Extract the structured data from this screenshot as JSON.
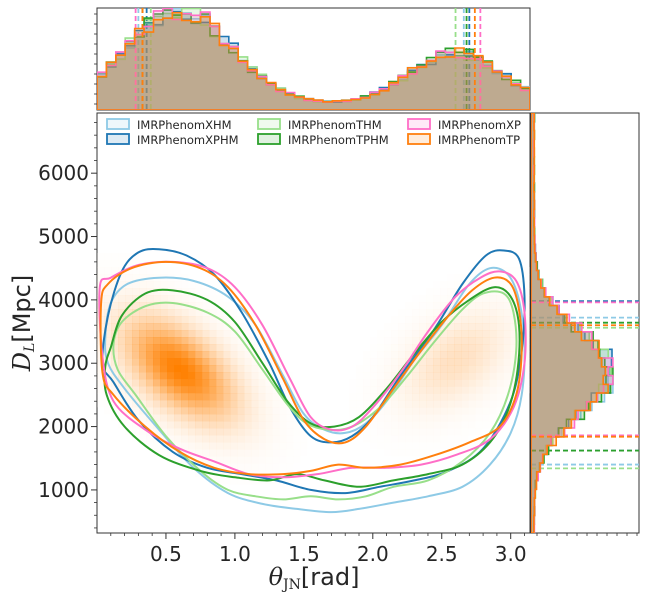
{
  "chart_data": {
    "type": "corner-plot",
    "description_axes": {
      "xlabel_main": "θ",
      "xlabel_sub": "JN",
      "xlabel_unit": "[rad]",
      "ylabel_main": "D",
      "ylabel_sub": "L",
      "ylabel_unit": "[Mpc]"
    },
    "xlim": [
      0.0,
      3.14
    ],
    "ylim": [
      320,
      6950
    ],
    "xticks": [
      0.5,
      1.0,
      1.5,
      2.0,
      2.5,
      3.0
    ],
    "xtick_labels": [
      "0.5",
      "1.0",
      "1.5",
      "2.0",
      "2.5",
      "3.0"
    ],
    "yticks": [
      1000,
      2000,
      3000,
      4000,
      5000,
      6000
    ],
    "ytick_labels": [
      "1000",
      "2000",
      "3000",
      "4000",
      "5000",
      "6000"
    ],
    "legend": {
      "position": "top-left",
      "columns": 3,
      "entries": [
        "IMRPhenomXHM",
        "IMRPhenomXPHM",
        "IMRPhenomTHM",
        "IMRPhenomTPHM",
        "IMRPhenomXP",
        "IMRPhenomTP"
      ]
    },
    "series": [
      {
        "name": "IMRPhenomXHM",
        "color": "#8ecae6",
        "contour": [
          [
            0.06,
            3400
          ],
          [
            0.1,
            3950
          ],
          [
            0.22,
            4250
          ],
          [
            0.45,
            4350
          ],
          [
            0.7,
            4300
          ],
          [
            0.95,
            4050
          ],
          [
            1.15,
            3600
          ],
          [
            1.35,
            2800
          ],
          [
            1.5,
            2200
          ],
          [
            1.65,
            1950
          ],
          [
            1.8,
            1900
          ],
          [
            1.95,
            2050
          ],
          [
            2.1,
            2400
          ],
          [
            2.3,
            3050
          ],
          [
            2.5,
            3600
          ],
          [
            2.7,
            4250
          ],
          [
            2.85,
            4500
          ],
          [
            2.98,
            4400
          ],
          [
            3.06,
            4000
          ],
          [
            3.1,
            3300
          ],
          [
            3.08,
            2500
          ],
          [
            3.0,
            1900
          ],
          [
            2.85,
            1400
          ],
          [
            2.65,
            1050
          ],
          [
            2.4,
            900
          ],
          [
            2.15,
            800
          ],
          [
            1.9,
            700
          ],
          [
            1.7,
            650
          ],
          [
            1.45,
            700
          ],
          [
            1.2,
            780
          ],
          [
            0.95,
            950
          ],
          [
            0.7,
            1350
          ],
          [
            0.45,
            1950
          ],
          [
            0.2,
            2600
          ],
          [
            0.08,
            3000
          ]
        ],
        "x_hist_medians_and_bounds": [
          0.3,
          2.66
        ],
        "y_hist_bounds": [
          1400,
          3720
        ]
      },
      {
        "name": "IMRPhenomXPHM",
        "color": "#1f77b4",
        "contour": [
          [
            0.04,
            3000
          ],
          [
            0.08,
            3750
          ],
          [
            0.18,
            4450
          ],
          [
            0.3,
            4750
          ],
          [
            0.45,
            4800
          ],
          [
            0.65,
            4700
          ],
          [
            0.85,
            4400
          ],
          [
            1.05,
            3800
          ],
          [
            1.25,
            3000
          ],
          [
            1.4,
            2300
          ],
          [
            1.55,
            1850
          ],
          [
            1.7,
            1750
          ],
          [
            1.85,
            1850
          ],
          [
            2.0,
            2150
          ],
          [
            2.2,
            2800
          ],
          [
            2.45,
            3550
          ],
          [
            2.65,
            4250
          ],
          [
            2.82,
            4700
          ],
          [
            2.95,
            4780
          ],
          [
            3.06,
            4650
          ],
          [
            3.1,
            4050
          ],
          [
            3.08,
            3200
          ],
          [
            3.0,
            2400
          ],
          [
            2.8,
            1650
          ],
          [
            2.55,
            1300
          ],
          [
            2.3,
            1150
          ],
          [
            2.05,
            1050
          ],
          [
            1.8,
            950
          ],
          [
            1.55,
            1000
          ],
          [
            1.3,
            1150
          ],
          [
            1.05,
            1250
          ],
          [
            0.8,
            1350
          ],
          [
            0.55,
            1600
          ],
          [
            0.3,
            2100
          ],
          [
            0.12,
            2700
          ]
        ],
        "x_hist_medians_and_bounds": [
          0.36,
          2.7
        ],
        "y_hist_bounds": [
          1620,
          3980
        ]
      },
      {
        "name": "IMRPhenomTHM",
        "color": "#98df8a",
        "contour": [
          [
            0.12,
            3300
          ],
          [
            0.18,
            3650
          ],
          [
            0.35,
            3900
          ],
          [
            0.55,
            3950
          ],
          [
            0.8,
            3800
          ],
          [
            1.0,
            3500
          ],
          [
            1.2,
            2900
          ],
          [
            1.38,
            2350
          ],
          [
            1.52,
            2050
          ],
          [
            1.68,
            1950
          ],
          [
            1.85,
            2000
          ],
          [
            2.05,
            2300
          ],
          [
            2.25,
            2800
          ],
          [
            2.45,
            3350
          ],
          [
            2.65,
            3850
          ],
          [
            2.8,
            4100
          ],
          [
            2.95,
            4100
          ],
          [
            3.02,
            3800
          ],
          [
            3.04,
            3200
          ],
          [
            2.98,
            2500
          ],
          [
            2.85,
            1900
          ],
          [
            2.65,
            1450
          ],
          [
            2.4,
            1150
          ],
          [
            2.15,
            1050
          ],
          [
            1.95,
            900
          ],
          [
            1.75,
            850
          ],
          [
            1.55,
            900
          ],
          [
            1.35,
            850
          ],
          [
            1.15,
            900
          ],
          [
            0.95,
            1000
          ],
          [
            0.75,
            1300
          ],
          [
            0.5,
            1850
          ],
          [
            0.28,
            2500
          ],
          [
            0.15,
            2900
          ]
        ],
        "x_hist_medians_and_bounds": [
          0.39,
          2.6
        ],
        "y_hist_bounds": [
          1340,
          3560
        ]
      },
      {
        "name": "IMRPhenomTPHM",
        "color": "#2ca02c",
        "contour": [
          [
            0.1,
            3250
          ],
          [
            0.18,
            3750
          ],
          [
            0.35,
            4100
          ],
          [
            0.55,
            4150
          ],
          [
            0.8,
            4000
          ],
          [
            1.0,
            3650
          ],
          [
            1.2,
            3000
          ],
          [
            1.38,
            2400
          ],
          [
            1.55,
            2050
          ],
          [
            1.72,
            2000
          ],
          [
            1.9,
            2150
          ],
          [
            2.1,
            2600
          ],
          [
            2.3,
            3150
          ],
          [
            2.5,
            3650
          ],
          [
            2.7,
            4000
          ],
          [
            2.88,
            4200
          ],
          [
            3.0,
            4050
          ],
          [
            3.06,
            3600
          ],
          [
            3.05,
            2900
          ],
          [
            2.98,
            2250
          ],
          [
            2.85,
            1750
          ],
          [
            2.65,
            1400
          ],
          [
            2.4,
            1250
          ],
          [
            2.15,
            1150
          ],
          [
            1.9,
            1050
          ],
          [
            1.65,
            1150
          ],
          [
            1.45,
            1250
          ],
          [
            1.25,
            1150
          ],
          [
            1.0,
            1200
          ],
          [
            0.75,
            1300
          ],
          [
            0.45,
            1550
          ],
          [
            0.2,
            2000
          ],
          [
            0.07,
            2500
          ],
          [
            0.06,
            2950
          ]
        ],
        "x_hist_medians_and_bounds": [
          0.33,
          2.68
        ],
        "y_hist_bounds": [
          1620,
          3640
        ]
      },
      {
        "name": "IMRPhenomXP",
        "color": "#ff6ec7",
        "contour": [
          [
            0.02,
            4200
          ],
          [
            0.1,
            4350
          ],
          [
            0.3,
            4550
          ],
          [
            0.55,
            4600
          ],
          [
            0.8,
            4500
          ],
          [
            1.0,
            4200
          ],
          [
            1.2,
            3600
          ],
          [
            1.4,
            2750
          ],
          [
            1.55,
            2150
          ],
          [
            1.7,
            1950
          ],
          [
            1.85,
            2000
          ],
          [
            2.0,
            2300
          ],
          [
            2.2,
            2850
          ],
          [
            2.4,
            3500
          ],
          [
            2.6,
            4050
          ],
          [
            2.78,
            4350
          ],
          [
            2.92,
            4450
          ],
          [
            3.04,
            4300
          ],
          [
            3.1,
            3800
          ],
          [
            3.1,
            3000
          ],
          [
            3.02,
            2300
          ],
          [
            2.85,
            1800
          ],
          [
            2.6,
            1550
          ],
          [
            2.35,
            1400
          ],
          [
            2.1,
            1350
          ],
          [
            1.85,
            1350
          ],
          [
            1.6,
            1250
          ],
          [
            1.35,
            1200
          ],
          [
            1.1,
            1250
          ],
          [
            0.85,
            1450
          ],
          [
            0.6,
            1650
          ],
          [
            0.35,
            1950
          ],
          [
            0.12,
            2400
          ],
          [
            0.04,
            3100
          ]
        ],
        "x_hist_medians_and_bounds": [
          0.28,
          2.78
        ],
        "y_hist_bounds": [
          1860,
          3960
        ]
      },
      {
        "name": "IMRPhenomTP",
        "color": "#ff7f0e",
        "contour": [
          [
            0.03,
            3950
          ],
          [
            0.08,
            4250
          ],
          [
            0.25,
            4500
          ],
          [
            0.5,
            4600
          ],
          [
            0.75,
            4500
          ],
          [
            0.95,
            4200
          ],
          [
            1.15,
            3600
          ],
          [
            1.35,
            2750
          ],
          [
            1.5,
            2100
          ],
          [
            1.65,
            1800
          ],
          [
            1.8,
            1750
          ],
          [
            1.95,
            2000
          ],
          [
            2.15,
            2600
          ],
          [
            2.35,
            3200
          ],
          [
            2.55,
            3750
          ],
          [
            2.72,
            4150
          ],
          [
            2.88,
            4350
          ],
          [
            3.0,
            4250
          ],
          [
            3.06,
            3850
          ],
          [
            3.08,
            3200
          ],
          [
            3.04,
            2500
          ],
          [
            2.92,
            2000
          ],
          [
            2.7,
            1750
          ],
          [
            2.45,
            1550
          ],
          [
            2.2,
            1400
          ],
          [
            1.95,
            1350
          ],
          [
            1.75,
            1400
          ],
          [
            1.55,
            1300
          ],
          [
            1.35,
            1250
          ],
          [
            1.1,
            1250
          ],
          [
            0.85,
            1350
          ],
          [
            0.6,
            1600
          ],
          [
            0.35,
            2000
          ],
          [
            0.12,
            2500
          ],
          [
            0.04,
            2850
          ]
        ],
        "x_hist_medians_and_bounds": [
          0.33,
          2.74
        ],
        "y_hist_bounds": [
          1840,
          3600
        ]
      }
    ],
    "density_modes": [
      {
        "x": 0.6,
        "y": 2900,
        "weight": 1.0
      },
      {
        "x": 2.6,
        "y": 3050,
        "weight": 0.45
      }
    ]
  }
}
